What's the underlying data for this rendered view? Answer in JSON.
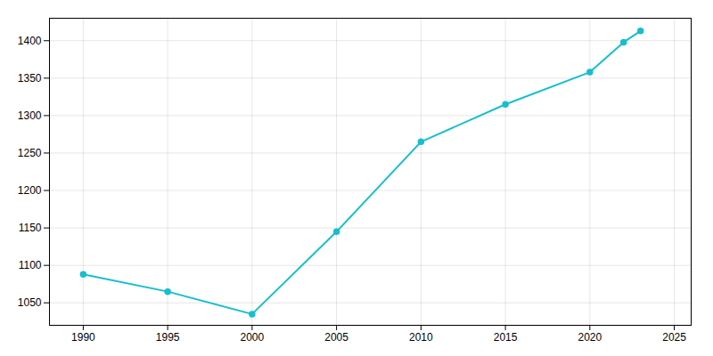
{
  "chart_data": {
    "type": "line",
    "x": [
      1990,
      1995,
      2000,
      2005,
      2010,
      2015,
      2020,
      2022,
      2023
    ],
    "values": [
      1088,
      1065,
      1035,
      1145,
      1265,
      1315,
      1358,
      1398,
      1413
    ],
    "color": "#17becf",
    "marker": "circle",
    "xlim": [
      1988,
      2026
    ],
    "xticks": [
      1990,
      1995,
      2000,
      2005,
      2010,
      2015,
      2020,
      2025
    ],
    "ylim": [
      1020,
      1430
    ],
    "yticks": [
      1050,
      1100,
      1150,
      1200,
      1250,
      1300,
      1350,
      1400
    ],
    "grid": true
  }
}
